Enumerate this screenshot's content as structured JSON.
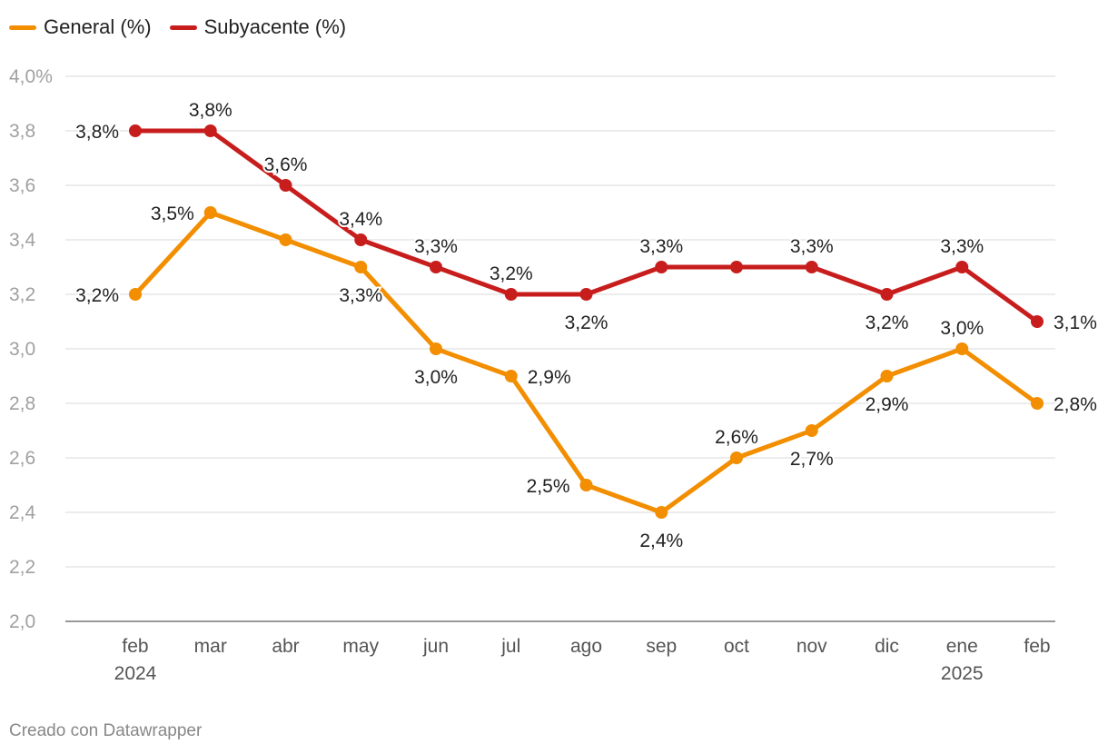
{
  "legend": [
    {
      "label": "General (%)",
      "color": "#f28e00"
    },
    {
      "label": "Subyacente (%)",
      "color": "#c71e1d"
    }
  ],
  "footer": "Creado con Datawrapper",
  "chart_data": {
    "type": "line",
    "categories": [
      "feb",
      "mar",
      "abr",
      "may",
      "jun",
      "jul",
      "ago",
      "sep",
      "oct",
      "nov",
      "dic",
      "ene",
      "feb"
    ],
    "category_sublabels": [
      "2024",
      "",
      "",
      "",
      "",
      "",
      "",
      "",
      "",
      "",
      "",
      "2025",
      ""
    ],
    "ylim": [
      2.0,
      4.0
    ],
    "yticks": [
      "2,0",
      "2,2",
      "2,4",
      "2,6",
      "2,8",
      "3,0",
      "3,2",
      "3,4",
      "3,6",
      "3,8",
      "4,0%"
    ],
    "grid": true,
    "legend_position": "top-left",
    "series": [
      {
        "name": "General (%)",
        "color": "#f28e00",
        "values": [
          3.2,
          3.5,
          3.4,
          3.3,
          3.0,
          2.9,
          2.5,
          2.4,
          2.6,
          2.7,
          2.9,
          3.0,
          2.8
        ],
        "labels": [
          "3,2%",
          "3,5%",
          "",
          "3,3%",
          "3,0%",
          "2,9%",
          "2,5%",
          "2,4%",
          "2,6%",
          "2,7%",
          "2,9%",
          "3,0%",
          "2,8%"
        ],
        "label_positions": [
          "left",
          "left",
          "none",
          "below",
          "below",
          "right",
          "left",
          "below",
          "above",
          "below",
          "below",
          "above",
          "right"
        ]
      },
      {
        "name": "Subyacente (%)",
        "color": "#c71e1d",
        "values": [
          3.8,
          3.8,
          3.6,
          3.4,
          3.3,
          3.2,
          3.2,
          3.3,
          3.3,
          3.3,
          3.2,
          3.3,
          3.1
        ],
        "labels": [
          "3,8%",
          "3,8%",
          "3,6%",
          "3,4%",
          "3,3%",
          "3,2%",
          "3,2%",
          "3,3%",
          "",
          "3,3%",
          "3,2%",
          "3,3%",
          "3,1%"
        ],
        "label_positions": [
          "left",
          "above",
          "above",
          "above",
          "above",
          "above",
          "below",
          "above",
          "none",
          "above",
          "below",
          "above",
          "right"
        ]
      }
    ]
  }
}
